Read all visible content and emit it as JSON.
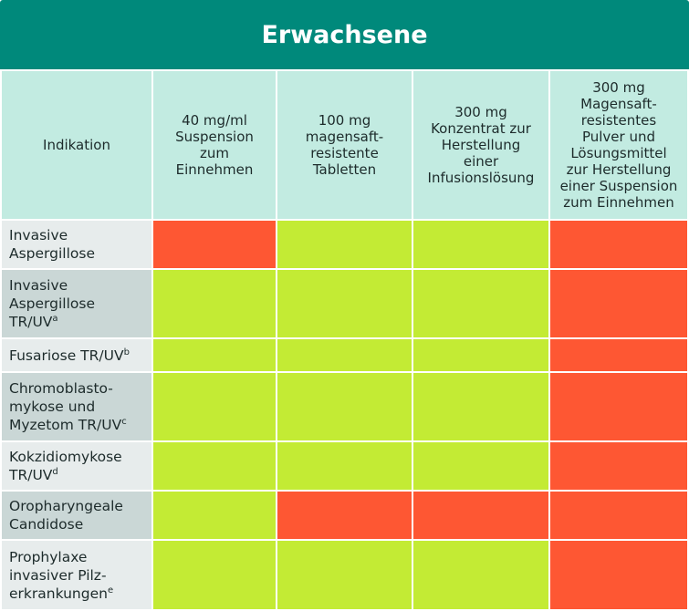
{
  "title": "Erwachsene",
  "colors": {
    "title_bg": "#00897b",
    "header_bg": "#c2ebe1",
    "green": "#c3eb34",
    "red": "#fe5733"
  },
  "columns": [
    "Indikation",
    "40 mg/ml\nSuspension\nzum\nEinnehmen",
    "100 mg\nmagensaft-\nresistente\nTabletten",
    "300 mg\nKonzentrat zur\nHerstellung\neiner\nInfusionslösung",
    "300 mg\nMagensaft-\nresistentes\nPulver und\nLösungsmittel\nzur Herstellung\neiner Suspension\nzum Einnehmen"
  ],
  "rows": [
    {
      "label": "Invasive\nAspergillose",
      "sup": "",
      "status": [
        "red",
        "green",
        "green",
        "red"
      ]
    },
    {
      "label": "Invasive\nAspergillose\nTR/UV",
      "sup": "a",
      "status": [
        "green",
        "green",
        "green",
        "red"
      ]
    },
    {
      "label": "Fusariose TR/UV",
      "sup": "b",
      "status": [
        "green",
        "green",
        "green",
        "red"
      ]
    },
    {
      "label": "Chromoblasto-\nmykose und\nMyzetom TR/UV",
      "sup": "c",
      "status": [
        "green",
        "green",
        "green",
        "red"
      ]
    },
    {
      "label": "Kokzidiomykose\nTR/UV",
      "sup": "d",
      "status": [
        "green",
        "green",
        "green",
        "red"
      ]
    },
    {
      "label": "Oropharyngeale\nCandidose",
      "sup": "",
      "status": [
        "green",
        "red",
        "red",
        "red"
      ]
    },
    {
      "label": "Prophylaxe\ninvasiver Pilz-\nerkrankungen",
      "sup": "e",
      "status": [
        "green",
        "green",
        "green",
        "red"
      ]
    }
  ]
}
